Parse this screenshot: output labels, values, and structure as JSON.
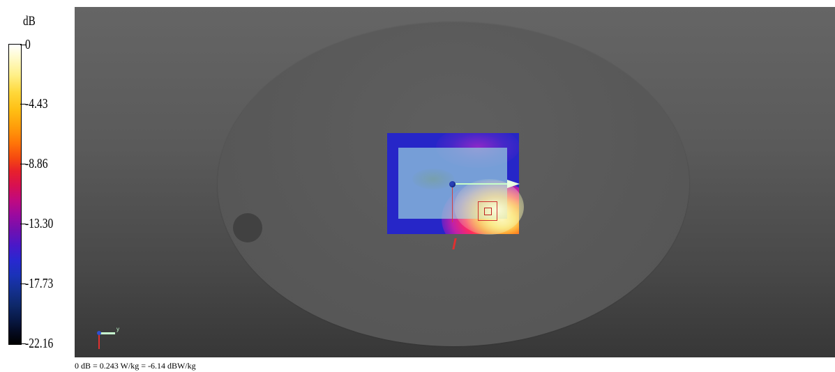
{
  "legend": {
    "unit": "dB",
    "ticks": [
      "0",
      "-4.43",
      "-8.86",
      "-13.30",
      "-17.73",
      "-22.16"
    ]
  },
  "viewport": {
    "gizmo_y_label": "y"
  },
  "caption": "0 dB = 0.243 W/kg = -6.14 dBW/kg",
  "colors": {
    "background": "#5a5a5a",
    "scan_area": "#2626c8",
    "hotspot": "#ffe060",
    "y_axis": "#c8ffc8",
    "z_axis": "#d04040"
  }
}
